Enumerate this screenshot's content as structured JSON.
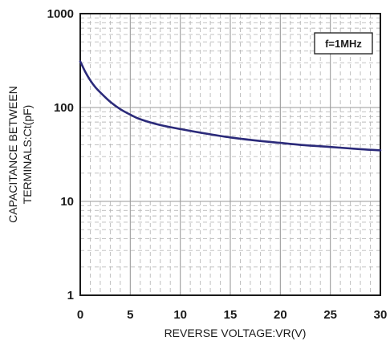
{
  "chart_data": {
    "type": "line",
    "title": "",
    "xlabel": "REVERSE VOLTAGE:VR(V)",
    "ylabel_lines": [
      "CAPACITANCE BETWEEN",
      "TERMINALS:Ct(pF)"
    ],
    "x_scale": "linear",
    "y_scale": "log",
    "xlim": [
      0,
      30
    ],
    "ylim": [
      1,
      1000
    ],
    "x_ticks": [
      0,
      5,
      10,
      15,
      20,
      25,
      30
    ],
    "y_ticks": [
      1,
      10,
      100,
      1000
    ],
    "x_tick_labels": [
      "0",
      "5",
      "10",
      "15",
      "20",
      "25",
      "30"
    ],
    "y_tick_labels": [
      "1",
      "10",
      "100",
      "1000"
    ],
    "grid": true,
    "annotation": "f=1MHz",
    "annotation_position": "top-right",
    "line_color": "#2b2a7a",
    "grid_color": "#b9b9b9",
    "series": [
      {
        "x": [
          0,
          0.5,
          1,
          1.5,
          2,
          3,
          4,
          5,
          6,
          8,
          10,
          12,
          15,
          18,
          20,
          22,
          25,
          28,
          30
        ],
        "y": [
          310,
          240,
          195,
          165,
          145,
          115,
          96,
          84,
          75,
          65,
          59,
          54,
          48,
          44,
          42,
          40,
          38,
          36,
          35
        ]
      }
    ]
  }
}
